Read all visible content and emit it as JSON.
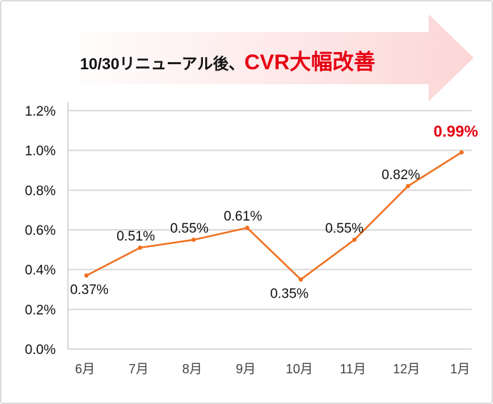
{
  "banner": {
    "prefix": "10/30リニューアル後、",
    "highlight": "CVR大幅改善"
  },
  "colors": {
    "line": "#f07020",
    "highlight": "#e60012",
    "grid": "#d9d9d9",
    "arrow_end": "#fcd6d6"
  },
  "chart_data": {
    "type": "line",
    "categories": [
      "6月",
      "7月",
      "8月",
      "9月",
      "10月",
      "11月",
      "12月",
      "1月"
    ],
    "values": [
      0.37,
      0.51,
      0.55,
      0.61,
      0.35,
      0.55,
      0.82,
      0.99
    ],
    "data_labels": [
      "0.37%",
      "0.51%",
      "0.55%",
      "0.61%",
      "0.35%",
      "0.55%",
      "0.82%",
      "0.99%"
    ],
    "highlight_index": 7,
    "y_unit": "%",
    "ylim": [
      0,
      1.2
    ],
    "yticks": [
      "0.0%",
      "0.2%",
      "0.4%",
      "0.6%",
      "0.8%",
      "1.0%",
      "1.2%"
    ],
    "ytick_values": [
      0,
      0.2,
      0.4,
      0.6,
      0.8,
      1.0,
      1.2
    ],
    "grid": true,
    "legend": "none"
  }
}
